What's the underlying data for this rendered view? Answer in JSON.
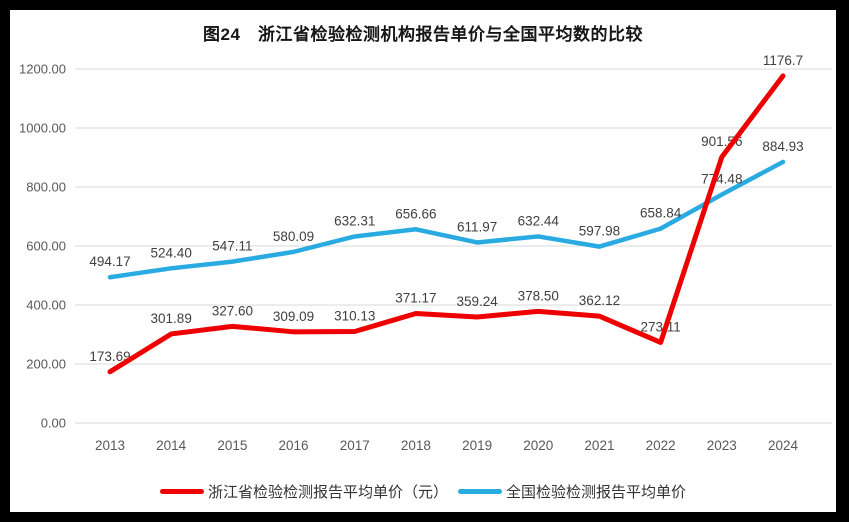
{
  "title": "图24　浙江省检验检测机构报告单价与全国平均数的比较",
  "colors": {
    "zhejiang_red": "#ee0000",
    "national_blue": "#29abe2",
    "gridline": "#d9d9d9",
    "axis_text": "#595959",
    "data_label_text": "#404040",
    "frame": "#000000",
    "chart_background": "#ffffff",
    "title_text": "#161616"
  },
  "chart_data": {
    "type": "line",
    "title": "图24　浙江省检验检测机构报告单价与全国平均数的比较",
    "categories": [
      "2013",
      "2014",
      "2015",
      "2016",
      "2017",
      "2018",
      "2019",
      "2020",
      "2021",
      "2022",
      "2023",
      "2024"
    ],
    "series": [
      {
        "name": "浙江省检验检测报告平均单价（元）",
        "color": "#ee0000",
        "values": [
          173.69,
          301.89,
          327.6,
          309.09,
          310.13,
          371.17,
          359.24,
          378.5,
          362.12,
          273.11,
          901.56,
          1176.7
        ],
        "labels": [
          "173.69",
          "301.89",
          "327.60",
          "309.09",
          "310.13",
          "371.17",
          "359.24",
          "378.50",
          "362.12",
          "273.11",
          "901.56",
          "1176.7"
        ]
      },
      {
        "name": "全国检验检测报告平均单价",
        "color": "#29abe2",
        "values": [
          494.17,
          524.4,
          547.11,
          580.09,
          632.31,
          656.66,
          611.97,
          632.44,
          597.98,
          658.84,
          774.48,
          884.93
        ],
        "labels": [
          "494.17",
          "524.40",
          "547.11",
          "580.09",
          "632.31",
          "656.66",
          "611.97",
          "632.44",
          "597.98",
          "658.84",
          "774.48",
          "884.93"
        ]
      }
    ],
    "y_axis": {
      "min": 0,
      "max": 1200,
      "tick_interval": 200,
      "tick_labels": [
        "0.00",
        "200.00",
        "400.00",
        "600.00",
        "800.00",
        "1000.00",
        "1200.00"
      ]
    },
    "xlabel": "",
    "ylabel": "",
    "grid": true,
    "data_labels": true,
    "legend_position": "bottom"
  }
}
